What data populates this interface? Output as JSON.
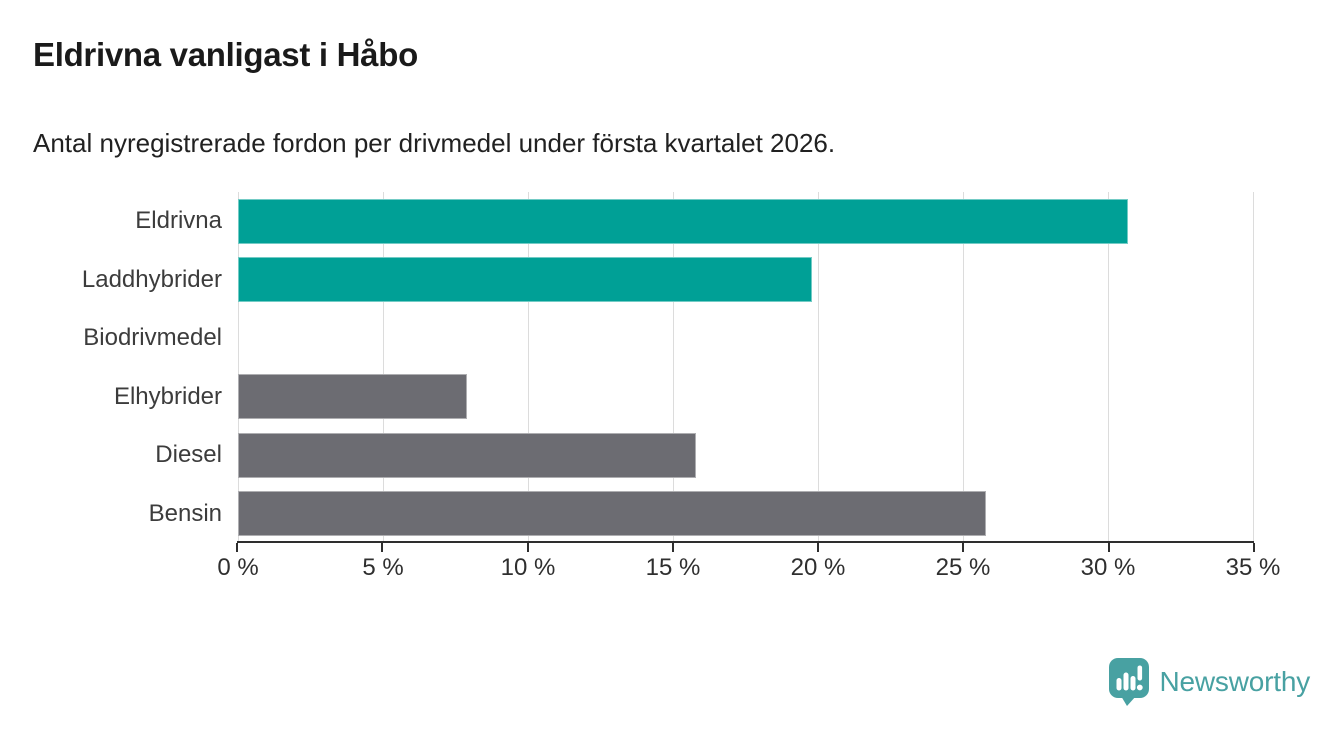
{
  "chart_data": {
    "type": "bar",
    "orientation": "horizontal",
    "title": "Eldrivna vanligast i Håbo",
    "subtitle": "Antal nyregistrerade fordon per drivmedel under första kvartalet 2026.",
    "categories": [
      "Eldrivna",
      "Laddhybrider",
      "Biodrivmedel",
      "Elhybrider",
      "Diesel",
      "Bensin"
    ],
    "values": [
      30.7,
      19.8,
      0,
      7.9,
      15.8,
      25.8
    ],
    "unit": "%",
    "bar_colors": [
      "#00A096",
      "#00A096",
      "#00A096",
      "#6C6C72",
      "#6C6C72",
      "#6C6C72"
    ],
    "xlabel": "",
    "ylabel": "",
    "xlim": [
      0,
      35
    ],
    "x_ticks": [
      0,
      5,
      10,
      15,
      20,
      25,
      30,
      35
    ],
    "x_tick_labels": [
      "0 %",
      "5 %",
      "10 %",
      "15 %",
      "20 %",
      "25 %",
      "30 %",
      "35 %"
    ],
    "grid": "vertical",
    "legend": "none"
  },
  "colors": {
    "accent_teal": "#00A096",
    "neutral_gray": "#6C6C72",
    "gridline": "#DCDCDC",
    "axis": "#2E2E2E",
    "title_text": "#1A1A1A",
    "label_text": "#3C3C3C",
    "brand_teal": "#48A1A2"
  },
  "footer": {
    "brand": "Newsworthy"
  }
}
